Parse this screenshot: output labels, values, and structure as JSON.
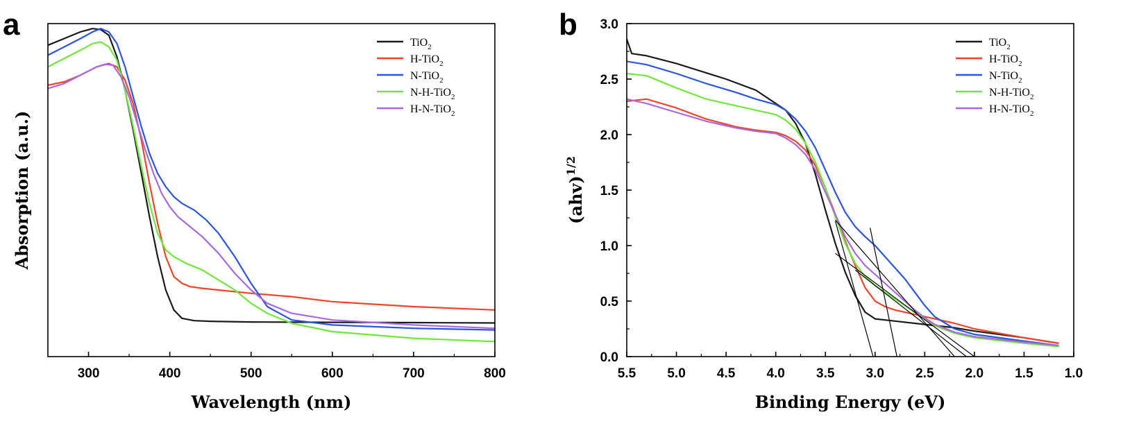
{
  "colors": {
    "TiO2": "#1a1a1a",
    "H-TiO2": "#f0442a",
    "N-TiO2": "#2a55e0",
    "N-H-TiO2": "#6ee83a",
    "H-N-TiO2": "#a868e0"
  },
  "chart_data": [
    {
      "type": "line",
      "panel": "a",
      "xlabel": "Wavelength (nm)",
      "ylabel": "Absorption (a.u.)",
      "xlim": [
        250,
        800
      ],
      "ylim": [
        0,
        1
      ],
      "xticks": [
        300,
        400,
        500,
        600,
        700,
        800
      ],
      "yticks": [],
      "legend_position": "top-right",
      "legend": [
        {
          "key": "TiO2",
          "base": "TiO",
          "sub": "2"
        },
        {
          "key": "H-TiO2",
          "base": "H-TiO",
          "sub": "2"
        },
        {
          "key": "N-TiO2",
          "base": "N-TiO",
          "sub": "2"
        },
        {
          "key": "N-H-TiO2",
          "base": "N-H-TiO",
          "sub": "2"
        },
        {
          "key": "H-N-TiO2",
          "base": "H-N-TiO",
          "sub": "2"
        }
      ],
      "series": [
        {
          "key": "TiO2",
          "x": [
            250,
            270,
            290,
            305,
            315,
            325,
            335,
            345,
            355,
            365,
            375,
            385,
            395,
            405,
            415,
            430,
            450,
            500,
            600,
            700,
            800
          ],
          "y": [
            0.935,
            0.955,
            0.975,
            0.985,
            0.982,
            0.965,
            0.9,
            0.8,
            0.68,
            0.55,
            0.42,
            0.3,
            0.2,
            0.14,
            0.115,
            0.108,
            0.106,
            0.104,
            0.103,
            0.102,
            0.101
          ]
        },
        {
          "key": "H-TiO2",
          "x": [
            250,
            270,
            290,
            310,
            325,
            335,
            345,
            355,
            365,
            375,
            385,
            395,
            405,
            415,
            425,
            440,
            460,
            500,
            550,
            600,
            700,
            800
          ],
          "y": [
            0.815,
            0.825,
            0.845,
            0.87,
            0.88,
            0.87,
            0.83,
            0.76,
            0.65,
            0.52,
            0.4,
            0.3,
            0.24,
            0.22,
            0.21,
            0.205,
            0.2,
            0.19,
            0.18,
            0.165,
            0.15,
            0.14
          ]
        },
        {
          "key": "N-TiO2",
          "x": [
            250,
            270,
            290,
            305,
            315,
            325,
            335,
            345,
            355,
            365,
            375,
            385,
            395,
            405,
            415,
            430,
            445,
            460,
            480,
            500,
            520,
            550,
            600,
            700,
            800
          ],
          "y": [
            0.905,
            0.93,
            0.955,
            0.975,
            0.985,
            0.975,
            0.94,
            0.87,
            0.78,
            0.69,
            0.61,
            0.55,
            0.51,
            0.48,
            0.46,
            0.44,
            0.41,
            0.37,
            0.3,
            0.22,
            0.15,
            0.11,
            0.095,
            0.085,
            0.08
          ]
        },
        {
          "key": "N-H-TiO2",
          "x": [
            250,
            270,
            290,
            305,
            315,
            325,
            335,
            345,
            355,
            365,
            375,
            385,
            395,
            405,
            420,
            440,
            460,
            480,
            500,
            520,
            550,
            600,
            700,
            800
          ],
          "y": [
            0.87,
            0.895,
            0.92,
            0.94,
            0.945,
            0.93,
            0.89,
            0.8,
            0.69,
            0.57,
            0.46,
            0.37,
            0.32,
            0.3,
            0.28,
            0.26,
            0.23,
            0.2,
            0.16,
            0.13,
            0.1,
            0.075,
            0.055,
            0.045
          ]
        },
        {
          "key": "H-N-TiO2",
          "x": [
            250,
            270,
            290,
            310,
            320,
            330,
            340,
            350,
            360,
            370,
            380,
            390,
            400,
            410,
            420,
            440,
            460,
            480,
            500,
            520,
            550,
            600,
            700,
            800
          ],
          "y": [
            0.805,
            0.82,
            0.845,
            0.87,
            0.878,
            0.875,
            0.84,
            0.78,
            0.7,
            0.62,
            0.55,
            0.49,
            0.45,
            0.42,
            0.4,
            0.36,
            0.31,
            0.25,
            0.2,
            0.16,
            0.13,
            0.11,
            0.095,
            0.085
          ]
        }
      ]
    },
    {
      "type": "line",
      "panel": "b",
      "xlabel": "Binding Energy (eV)",
      "ylabel": "(ahv)",
      "ylabel_sup": "1/2",
      "xlim": [
        5.5,
        1.0
      ],
      "ylim": [
        0,
        3.0
      ],
      "xticks": [
        5.5,
        5.0,
        4.5,
        4.0,
        3.5,
        3.0,
        2.5,
        2.0,
        1.5,
        1.0
      ],
      "yticks": [
        0.0,
        0.5,
        1.0,
        1.5,
        2.0,
        2.5,
        3.0
      ],
      "legend_position": "top-right",
      "legend": [
        {
          "key": "TiO2",
          "base": "TiO",
          "sub": "2"
        },
        {
          "key": "H-TiO2",
          "base": "H-TiO",
          "sub": "2"
        },
        {
          "key": "N-TiO2",
          "base": "N-TiO",
          "sub": "2"
        },
        {
          "key": "N-H-TiO2",
          "base": "N-H-TiO",
          "sub": "2"
        },
        {
          "key": "H-N-TiO2",
          "base": "H-N-TiO",
          "sub": "2"
        }
      ],
      "series": [
        {
          "key": "TiO2",
          "x": [
            5.5,
            5.45,
            5.3,
            5.0,
            4.5,
            4.2,
            4.0,
            3.9,
            3.8,
            3.7,
            3.6,
            3.5,
            3.4,
            3.3,
            3.2,
            3.1,
            3.0,
            2.9,
            2.8,
            2.5,
            2.2,
            2.0,
            1.5,
            1.15
          ],
          "y": [
            2.86,
            2.73,
            2.71,
            2.64,
            2.5,
            2.4,
            2.28,
            2.22,
            2.1,
            1.92,
            1.64,
            1.32,
            1.02,
            0.76,
            0.55,
            0.4,
            0.34,
            0.33,
            0.32,
            0.29,
            0.26,
            0.23,
            0.17,
            0.12
          ]
        },
        {
          "key": "H-TiO2",
          "x": [
            5.5,
            5.3,
            5.0,
            4.7,
            4.4,
            4.2,
            4.0,
            3.9,
            3.8,
            3.7,
            3.6,
            3.5,
            3.4,
            3.3,
            3.2,
            3.1,
            3.0,
            2.9,
            2.8,
            2.6,
            2.4,
            2.2,
            2.0,
            1.5,
            1.15
          ],
          "y": [
            2.3,
            2.32,
            2.24,
            2.14,
            2.07,
            2.04,
            2.02,
            1.99,
            1.94,
            1.86,
            1.72,
            1.52,
            1.28,
            1.04,
            0.82,
            0.62,
            0.5,
            0.45,
            0.42,
            0.38,
            0.34,
            0.3,
            0.25,
            0.17,
            0.12
          ]
        },
        {
          "key": "N-TiO2",
          "x": [
            5.5,
            5.3,
            5.0,
            4.7,
            4.4,
            4.2,
            4.0,
            3.9,
            3.8,
            3.7,
            3.6,
            3.5,
            3.4,
            3.3,
            3.2,
            3.1,
            3.0,
            2.9,
            2.8,
            2.7,
            2.6,
            2.5,
            2.4,
            2.2,
            2.0,
            1.5,
            1.15
          ],
          "y": [
            2.66,
            2.63,
            2.55,
            2.46,
            2.38,
            2.32,
            2.27,
            2.22,
            2.14,
            2.03,
            1.88,
            1.68,
            1.48,
            1.3,
            1.17,
            1.08,
            1.0,
            0.9,
            0.8,
            0.7,
            0.58,
            0.46,
            0.36,
            0.25,
            0.2,
            0.14,
            0.1
          ]
        },
        {
          "key": "N-H-TiO2",
          "x": [
            5.5,
            5.3,
            5.0,
            4.7,
            4.4,
            4.2,
            4.0,
            3.9,
            3.8,
            3.7,
            3.6,
            3.5,
            3.4,
            3.3,
            3.2,
            3.1,
            3.0,
            2.9,
            2.8,
            2.7,
            2.6,
            2.5,
            2.4,
            2.2,
            2.0,
            1.5,
            1.15
          ],
          "y": [
            2.55,
            2.53,
            2.42,
            2.32,
            2.26,
            2.22,
            2.18,
            2.13,
            2.05,
            1.92,
            1.75,
            1.52,
            1.26,
            1.02,
            0.84,
            0.72,
            0.64,
            0.58,
            0.52,
            0.46,
            0.4,
            0.34,
            0.28,
            0.21,
            0.17,
            0.12,
            0.09
          ]
        },
        {
          "key": "H-N-TiO2",
          "x": [
            5.5,
            5.3,
            5.0,
            4.7,
            4.4,
            4.2,
            4.0,
            3.9,
            3.8,
            3.7,
            3.6,
            3.5,
            3.4,
            3.3,
            3.2,
            3.1,
            3.0,
            2.9,
            2.8,
            2.7,
            2.6,
            2.5,
            2.4,
            2.2,
            2.0,
            1.5,
            1.15
          ],
          "y": [
            2.32,
            2.28,
            2.2,
            2.12,
            2.06,
            2.03,
            2.01,
            1.97,
            1.91,
            1.82,
            1.68,
            1.48,
            1.28,
            1.08,
            0.93,
            0.82,
            0.74,
            0.66,
            0.58,
            0.5,
            0.42,
            0.35,
            0.29,
            0.22,
            0.18,
            0.13,
            0.1
          ]
        }
      ],
      "tangent_lines": [
        {
          "x": [
            3.4,
            3.02
          ],
          "y": [
            1.22,
            0.0
          ]
        },
        {
          "x": [
            3.05,
            2.78
          ],
          "y": [
            1.16,
            0.0
          ]
        },
        {
          "x": [
            3.4,
            2.2
          ],
          "y": [
            1.23,
            0.0
          ]
        },
        {
          "x": [
            3.4,
            2.0
          ],
          "y": [
            0.93,
            0.0
          ]
        },
        {
          "x": [
            3.2,
            2.08
          ],
          "y": [
            0.78,
            0.0
          ]
        }
      ]
    }
  ]
}
